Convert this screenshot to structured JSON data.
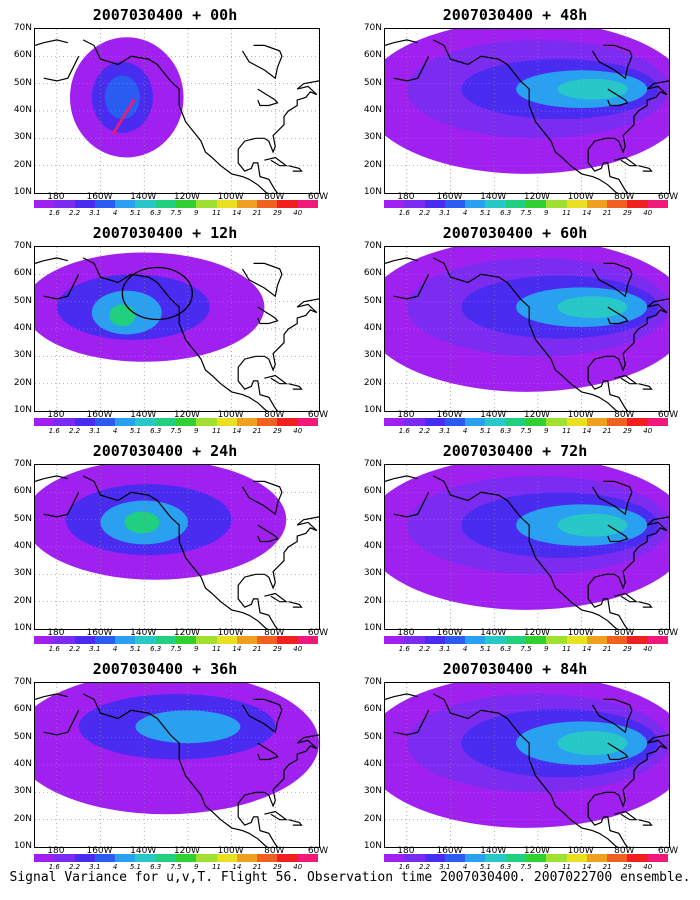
{
  "panels": [
    {
      "title": "2007030400 + 00h",
      "intensity": 0.35,
      "route": true,
      "circle": false
    },
    {
      "title": "2007030400 + 12h",
      "intensity": 0.5,
      "route": false,
      "circle": true
    },
    {
      "title": "2007030400 + 24h",
      "intensity": 0.6,
      "route": false,
      "circle": false
    },
    {
      "title": "2007030400 + 36h",
      "intensity": 0.65,
      "route": false,
      "circle": false
    },
    {
      "title": "2007030400 + 48h",
      "intensity": 0.7,
      "route": false,
      "circle": false
    },
    {
      "title": "2007030400 + 60h",
      "intensity": 0.75,
      "route": false,
      "circle": false
    },
    {
      "title": "2007030400 + 72h",
      "intensity": 0.8,
      "route": false,
      "circle": false
    },
    {
      "title": "2007030400 + 84h",
      "intensity": 0.85,
      "route": false,
      "circle": false
    }
  ],
  "y_ticks": [
    "70N",
    "60N",
    "50N",
    "40N",
    "30N",
    "20N",
    "10N"
  ],
  "x_ticks": [
    "180",
    "160W",
    "140W",
    "120W",
    "100W",
    "80W",
    "60W"
  ],
  "colorbar": {
    "labels": [
      "1.6",
      "2.2",
      "3.1",
      "4",
      "5.1",
      "6.3",
      "7.5",
      "9",
      "11",
      "14",
      "21",
      "29",
      "40"
    ],
    "colors": [
      "#a020f0",
      "#7b2cf0",
      "#4a2cf0",
      "#2a5cf0",
      "#2aa0f0",
      "#28c8c8",
      "#20d080",
      "#30d030",
      "#a0e030",
      "#e8e020",
      "#f0a020",
      "#f06020",
      "#f02020",
      "#f01878"
    ]
  },
  "caption": "Signal Variance for u,v,T. Flight 56. Observation time 2007030400. 2007022700 ensemble."
}
